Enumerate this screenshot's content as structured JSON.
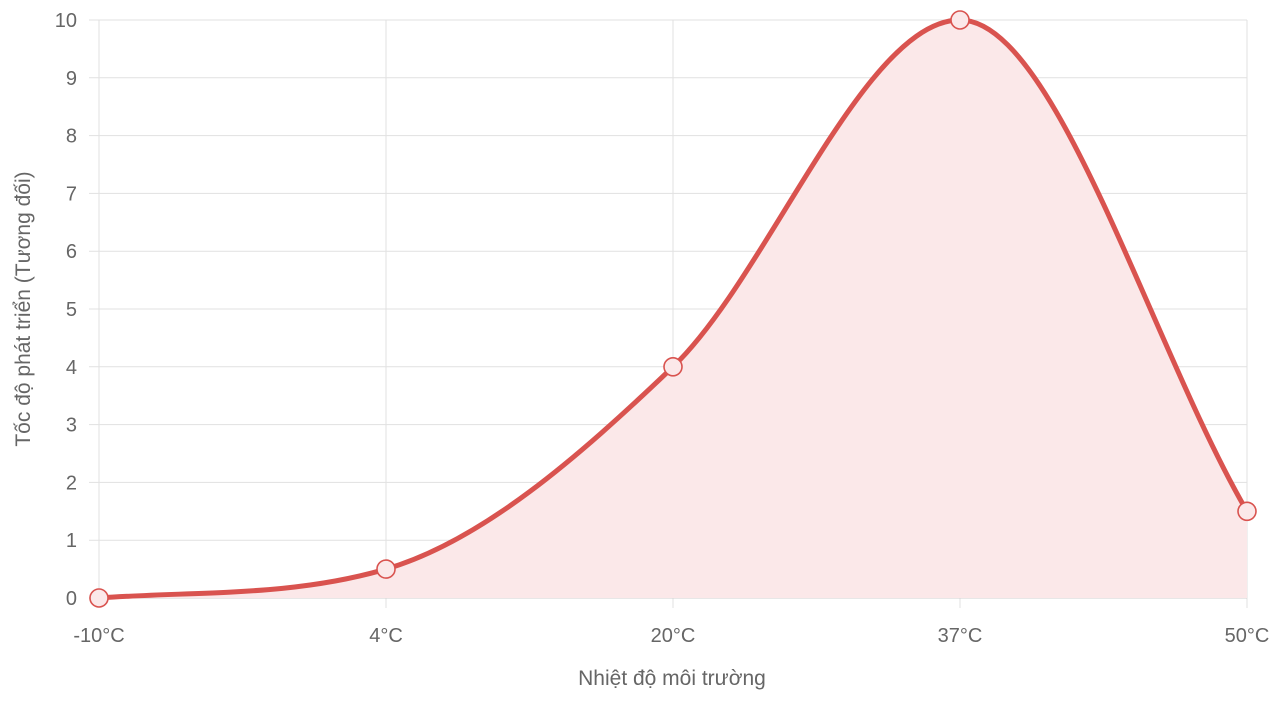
{
  "chart_data": {
    "type": "line",
    "categories": [
      "-10°C",
      "4°C",
      "20°C",
      "37°C",
      "50°C"
    ],
    "series": [
      {
        "values": [
          0,
          0.5,
          4,
          10,
          1.5
        ],
        "color": "#d9534f",
        "fill_color": "#fbe8e9"
      }
    ],
    "xlabel": "Nhiệt độ môi trường",
    "ylabel": "Tốc độ phát triển (Tương đối)",
    "ylim": [
      0,
      10
    ],
    "yticks": [
      "0",
      "1",
      "2",
      "3",
      "4",
      "5",
      "6",
      "7",
      "8",
      "9",
      "10"
    ],
    "grid": true,
    "smooth": true,
    "legend": "none"
  }
}
